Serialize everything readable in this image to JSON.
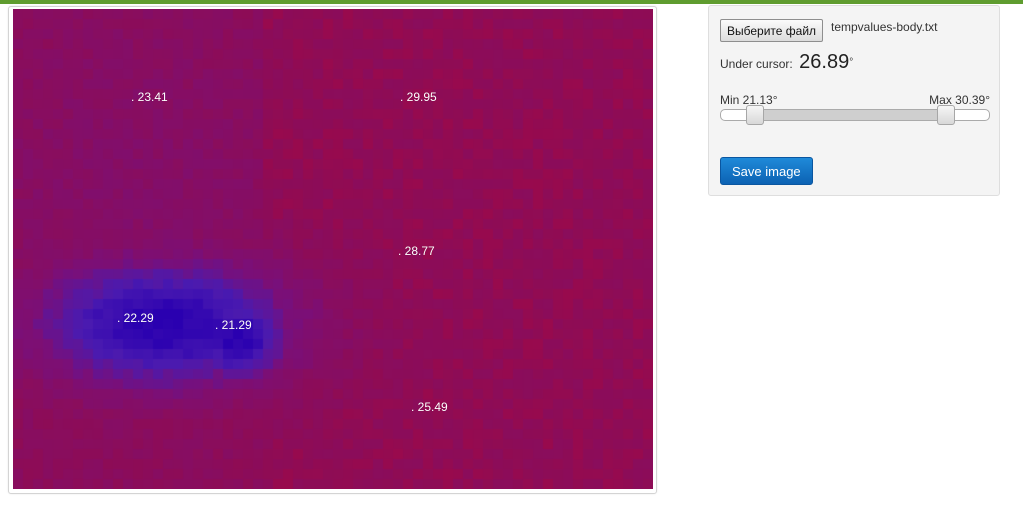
{
  "colors": {
    "accent_bar": "#5f9c2f",
    "save_button": "#1172c6",
    "palette": [
      "#2a00b0",
      "#4a1ab0",
      "#7a0f78",
      "#8e0c55",
      "#c3002d",
      "#e01010",
      "#ff3000",
      "#ff6a00",
      "#ff9a00",
      "#ffc400",
      "#ffe000"
    ]
  },
  "controls": {
    "file_button_label": "Выберите файл",
    "file_name": "tempvalues-body.txt",
    "under_cursor_label": "Under cursor:",
    "under_cursor_value": "26.89",
    "degree_symbol": "°",
    "min_label": "Min 21.13°",
    "max_label": "Max 30.39°",
    "range": {
      "low": 21.13,
      "high": 30.39,
      "scale_min": 19.5,
      "scale_max": 32.5
    },
    "save_button_label": "Save image"
  },
  "thermal": {
    "markers": [
      {
        "label": ". 23.41"
      },
      {
        "label": ". 29.95"
      },
      {
        "label": ". 28.77"
      },
      {
        "label": ". 22.29"
      },
      {
        "label": ". 21.29"
      },
      {
        "label": ". 25.49"
      }
    ]
  }
}
